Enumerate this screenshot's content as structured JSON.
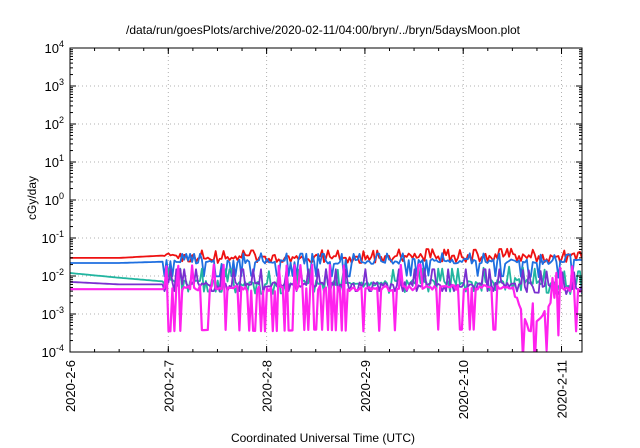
{
  "chart_data": {
    "type": "line",
    "title": "/data/run/goesPlots/archive/2020-02-11/04:00/bryn/../bryn/5daysMoon.plot",
    "xlabel": "Coordinated Universal Time (UTC)",
    "ylabel": "cGy/day",
    "x_scale": "time",
    "y_scale": "log",
    "xlim": [
      "2020-02-06",
      "2020-02-11 05:00"
    ],
    "ylim": [
      0.0001,
      10000
    ],
    "x_ticks": [
      "2020-2-6",
      "2020-2-7",
      "2020-2-8",
      "2020-2-9",
      "2020-2-10",
      "2020-2-11"
    ],
    "y_ticks": [
      {
        "base": "10",
        "exp": "-4"
      },
      {
        "base": "10",
        "exp": "-3"
      },
      {
        "base": "10",
        "exp": "-2"
      },
      {
        "base": "10",
        "exp": "-1"
      },
      {
        "base": "10",
        "exp": "0"
      },
      {
        "base": "10",
        "exp": "1"
      },
      {
        "base": "10",
        "exp": "2"
      },
      {
        "base": "10",
        "exp": "3"
      },
      {
        "base": "10",
        "exp": "4"
      }
    ],
    "grid": true,
    "legend": null,
    "series": [
      {
        "color": "#ee1111",
        "baseline": 0.03,
        "dip_to": 0.022,
        "spike_to": 0.045,
        "x": [
          "2020-02-06",
          "2020-02-06 12:00",
          "2020-02-07",
          "2020-02-07 12:00",
          "2020-02-08",
          "2020-02-08 12:00",
          "2020-02-09",
          "2020-02-09 12:00",
          "2020-02-10",
          "2020-02-10 12:00",
          "2020-02-11",
          "2020-02-11 05:00"
        ],
        "y": [
          0.03,
          0.03,
          0.035,
          0.03,
          0.032,
          0.032,
          0.03,
          0.035,
          0.032,
          0.035,
          0.03,
          0.04
        ]
      },
      {
        "color": "#1e6fe0",
        "baseline": 0.022,
        "dip_to": 0.009,
        "spike_to": 0.035,
        "x": [
          "2020-02-06",
          "2020-02-06 12:00",
          "2020-02-07",
          "2020-02-07 12:00",
          "2020-02-08",
          "2020-02-08 12:00",
          "2020-02-09",
          "2020-02-09 12:00",
          "2020-02-10",
          "2020-02-10 12:00",
          "2020-02-11",
          "2020-02-11 05:00"
        ],
        "y": [
          0.022,
          0.022,
          0.024,
          0.024,
          0.025,
          0.024,
          0.024,
          0.025,
          0.025,
          0.024,
          0.022,
          0.025
        ]
      },
      {
        "color": "#22b5a0",
        "baseline": 0.009,
        "dip_to": 0.005,
        "spike_to": 0.02,
        "x": [
          "2020-02-06",
          "2020-02-06 12:00",
          "2020-02-07",
          "2020-02-07 12:00",
          "2020-02-08",
          "2020-02-08 12:00",
          "2020-02-09",
          "2020-02-09 12:00",
          "2020-02-10",
          "2020-02-10 12:00",
          "2020-02-11",
          "2020-02-11 05:00"
        ],
        "y": [
          0.012,
          0.009,
          0.007,
          0.007,
          0.006,
          0.007,
          0.006,
          0.007,
          0.007,
          0.008,
          0.006,
          0.006
        ]
      },
      {
        "color": "#7a2fd0",
        "baseline": 0.006,
        "dip_to": 0.004,
        "spike_to": 0.015,
        "x": [
          "2020-02-06",
          "2020-02-06 12:00",
          "2020-02-07",
          "2020-02-07 12:00",
          "2020-02-08",
          "2020-02-08 12:00",
          "2020-02-09",
          "2020-02-09 12:00",
          "2020-02-10",
          "2020-02-10 12:00",
          "2020-02-11",
          "2020-02-11 05:00"
        ],
        "y": [
          0.007,
          0.006,
          0.006,
          0.006,
          0.006,
          0.006,
          0.006,
          0.006,
          0.006,
          0.006,
          0.005,
          0.005
        ]
      },
      {
        "color": "#ff22ee",
        "baseline": 0.0045,
        "dip_to": 0.00035,
        "spike_to": 0.018,
        "x": [
          "2020-02-06",
          "2020-02-06 12:00",
          "2020-02-07",
          "2020-02-07 12:00",
          "2020-02-08",
          "2020-02-08 12:00",
          "2020-02-09",
          "2020-02-09 12:00",
          "2020-02-10",
          "2020-02-10 12:00",
          "2020-02-10 16:00",
          "2020-02-11",
          "2020-02-11 05:00"
        ],
        "y": [
          0.0045,
          0.0045,
          0.0045,
          0.005,
          0.0045,
          0.005,
          0.0045,
          0.005,
          0.005,
          0.005,
          0.00035,
          0.0045,
          0.0045
        ]
      }
    ]
  }
}
